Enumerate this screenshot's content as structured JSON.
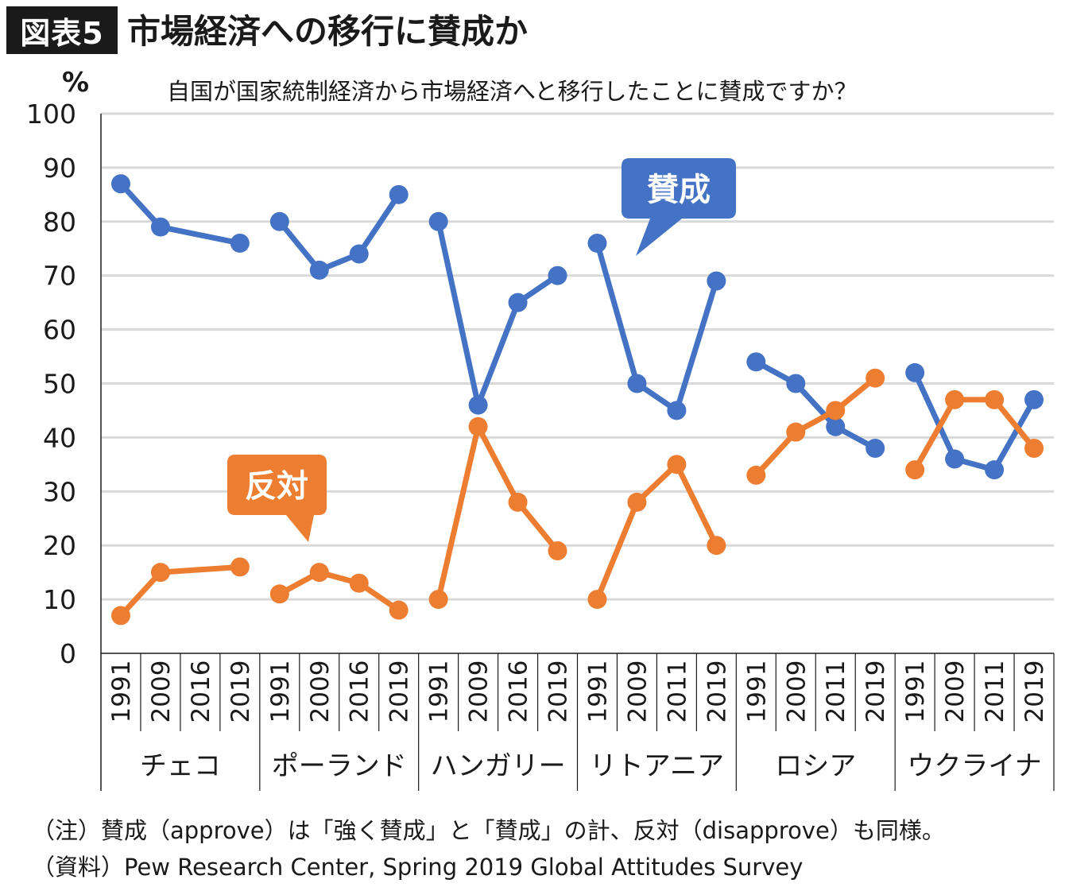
{
  "header": {
    "badge": "図表5",
    "title": "市場経済への移行に賛成か"
  },
  "unit_label": "%",
  "subtitle": "自国が国家統制経済から市場経済へと移行したことに賛成ですか？",
  "note": "（注）賛成（approve）は「強く賛成」と「賛成」の計、反対（disapprove）も同様。",
  "source": "（資料）Pew Research Center, Spring 2019 Global Attitudes Survey",
  "callouts": {
    "approve": "賛成",
    "disapprove": "反対"
  },
  "colors": {
    "approve": "#4472c4",
    "disapprove": "#ed7d31",
    "grid": "#d9d9d9",
    "axis": "#1a1a1a"
  },
  "chart_data": {
    "type": "line",
    "ylim": [
      0,
      100
    ],
    "yticks": [
      0,
      10,
      20,
      30,
      40,
      50,
      60,
      70,
      80,
      90,
      100
    ],
    "grid": true,
    "groups": [
      {
        "name": "チェコ",
        "years": [
          "1991",
          "2009",
          "2016",
          "2019"
        ],
        "approve": [
          87,
          79,
          null,
          76
        ],
        "disapprove": [
          7,
          15,
          null,
          16
        ]
      },
      {
        "name": "ポーランド",
        "years": [
          "1991",
          "2009",
          "2016",
          "2019"
        ],
        "approve": [
          80,
          71,
          74,
          85
        ],
        "disapprove": [
          11,
          15,
          13,
          8
        ]
      },
      {
        "name": "ハンガリー",
        "years": [
          "1991",
          "2009",
          "2016",
          "2019"
        ],
        "approve": [
          80,
          46,
          65,
          70
        ],
        "disapprove": [
          10,
          42,
          28,
          19
        ]
      },
      {
        "name": "リトアニア",
        "years": [
          "1991",
          "2009",
          "2011",
          "2019"
        ],
        "approve": [
          76,
          50,
          45,
          69
        ],
        "disapprove": [
          10,
          28,
          35,
          20
        ]
      },
      {
        "name": "ロシア",
        "years": [
          "1991",
          "2009",
          "2011",
          "2019"
        ],
        "approve": [
          54,
          50,
          42,
          38
        ],
        "disapprove": [
          33,
          41,
          45,
          51
        ]
      },
      {
        "name": "ウクライナ",
        "years": [
          "1991",
          "2009",
          "2011",
          "2019"
        ],
        "approve": [
          52,
          36,
          34,
          47
        ],
        "disapprove": [
          34,
          47,
          47,
          38
        ]
      }
    ]
  }
}
